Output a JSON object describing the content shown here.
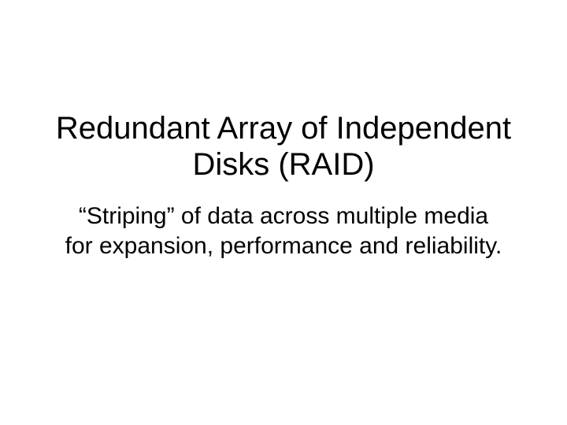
{
  "slide": {
    "title": "Redundant Array of Independent Disks (RAID)",
    "subtitle": "“Striping” of data across multiple media for expansion, performance and reliability.",
    "title_fontsize": 40,
    "subtitle_fontsize": 30,
    "title_color": "#000000",
    "subtitle_color": "#000000",
    "background_color": "#ffffff",
    "font_family": "Arial, Helvetica, sans-serif",
    "title_weight": 400,
    "subtitle_weight": 400
  }
}
